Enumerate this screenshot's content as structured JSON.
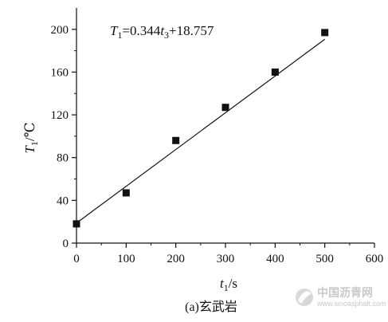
{
  "chart_data": {
    "type": "scatter",
    "title": "",
    "equation": {
      "lhs_main": "T",
      "lhs_sub": "1",
      "mid": "=0.344",
      "var_main": "t",
      "var_sub": "3",
      "tail": "+18.757"
    },
    "fit": {
      "slope": 0.344,
      "intercept": 18.757,
      "x_range": [
        0,
        500
      ]
    },
    "x": [
      0,
      100,
      200,
      300,
      400,
      500
    ],
    "y": [
      18,
      47,
      96,
      127,
      160,
      197
    ],
    "xlim": [
      0,
      600
    ],
    "ylim": [
      0,
      220
    ],
    "xticks": [
      "0",
      "100",
      "200",
      "300",
      "400",
      "500",
      "600"
    ],
    "yticks": [
      "0",
      "40",
      "80",
      "120",
      "160",
      "200"
    ],
    "xlabel": {
      "main": "t",
      "sub": "1",
      "unit": "/s"
    },
    "ylabel": {
      "main": "T",
      "sub": "1",
      "unit": "/℃"
    },
    "grid": false,
    "legend": "none",
    "marker": "square",
    "color": "#111111"
  },
  "caption": "(a)玄武岩",
  "watermark": {
    "name": "中国沥青网",
    "url": "www.sinoasphalt.com"
  }
}
